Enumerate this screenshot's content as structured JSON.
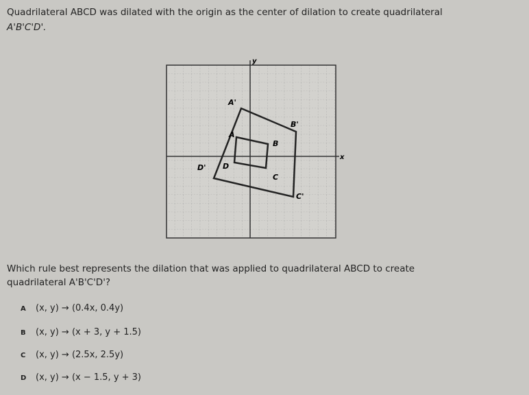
{
  "question": {
    "intro_line1": "Quadrilateral ABCD was dilated with the origin as the center of dilation to create quadrilateral",
    "intro_line2": "A'B'C'D'.",
    "graph": {
      "x_axis_label": "x",
      "y_axis_label": "y",
      "image_labels": [
        "A'",
        "B'",
        "C'",
        "D'"
      ],
      "preimage_labels": [
        "A",
        "B",
        "C",
        "D"
      ]
    },
    "prompt_line1": "Which rule best represents the dilation that was applied to quadrilateral ABCD to create",
    "prompt_line2": "quadrilateral A'B'C'D'?",
    "choices": [
      {
        "letter": "A",
        "text": "(x, y) → (0.4x, 0.4y)"
      },
      {
        "letter": "B",
        "text": "(x, y) → (x + 3, y + 1.5)"
      },
      {
        "letter": "C",
        "text": "(x, y) → (2.5x, 2.5y)"
      },
      {
        "letter": "D",
        "text": "(x, y) → (x − 1.5, y + 3)"
      }
    ]
  }
}
